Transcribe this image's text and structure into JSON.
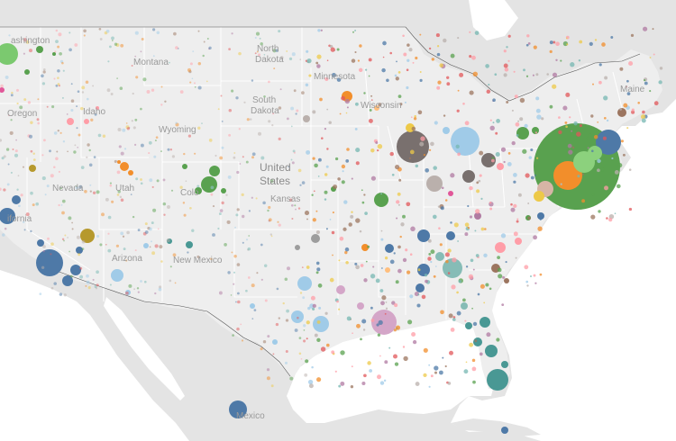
{
  "map": {
    "labels": {
      "washington": "ashington",
      "montana": "Montana",
      "north_dakota_1": "North",
      "north_dakota_2": "Dakota",
      "minnesota": "Minnesota",
      "oregon": "Oregon",
      "idaho": "Idaho",
      "south_dakota_1": "South",
      "south_dakota_2": "Dakota",
      "wisconsin": "Wisconsin",
      "wyoming": "Wyoming",
      "maine": "Maine",
      "nevada": "Nevada",
      "utah": "Utah",
      "colorado": "Colo",
      "united_states_1": "United",
      "united_states_2": "States",
      "kansas": "Kansas",
      "california": "ifornia",
      "arizona": "Arizona",
      "new_mexico": "New Mexico",
      "mexico": "Mexico"
    },
    "colors": {
      "land": "#e4e4e4",
      "water": "#ffffff",
      "border": "#ffffff"
    }
  }
}
